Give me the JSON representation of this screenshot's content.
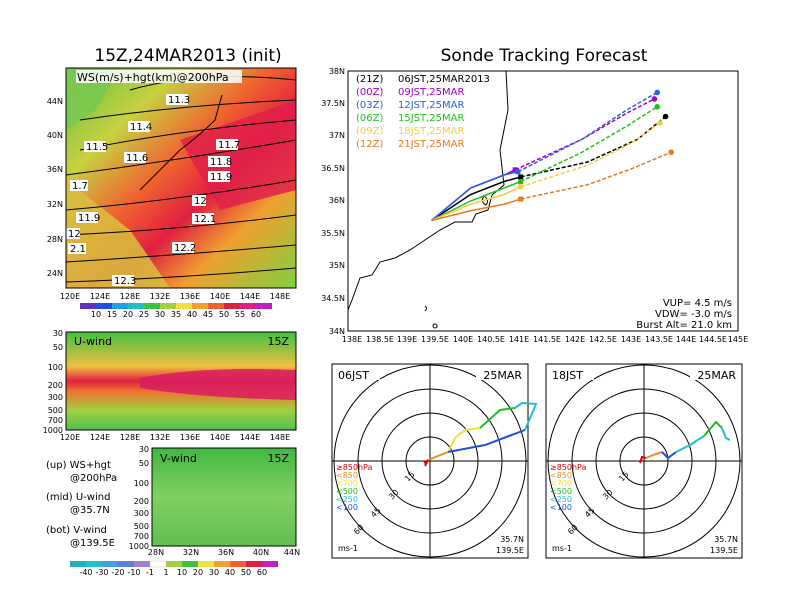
{
  "left_title": "15Z,24MAR2013 (init)",
  "right_title": "Sonde Tracking Forecast",
  "ws_panel": {
    "label": "WS(m/s)+hgt(km)@200hPa",
    "lat_ticks": [
      "44N",
      "40N",
      "36N",
      "32N",
      "28N",
      "24N"
    ],
    "lon_ticks": [
      "120E",
      "124E",
      "128E",
      "132E",
      "136E",
      "140E",
      "144E",
      "148E"
    ],
    "contour_labels": [
      "11.3",
      "11.4",
      "11.5",
      "11.6",
      "11.7",
      "11.8",
      "11.9",
      "1.7",
      "12",
      "12.1",
      "11.9",
      "12",
      "2.1",
      "12.2",
      "12.3"
    ],
    "colorbar": [
      "10",
      "15",
      "20",
      "25",
      "30",
      "35",
      "40",
      "45",
      "50",
      "55",
      "60"
    ]
  },
  "uwind_panel": {
    "label": "U-wind",
    "time": "15Z",
    "p_ticks": [
      "30",
      "50",
      "100",
      "200",
      "300",
      "500",
      "700",
      "1000"
    ],
    "lon_ticks": [
      "120E",
      "124E",
      "128E",
      "132E",
      "136E",
      "140E",
      "144E",
      "148E"
    ]
  },
  "vwind_panel": {
    "label": "V-wind",
    "time": "15Z",
    "p_ticks": [
      "30",
      "50",
      "100",
      "200",
      "300",
      "500",
      "700",
      "1000"
    ],
    "lat_ticks": [
      "28N",
      "32N",
      "36N",
      "40N",
      "44N"
    ],
    "colorbar": [
      "-40",
      "-30",
      "-20",
      "-10",
      "-1",
      "1",
      "10",
      "20",
      "30",
      "40",
      "50",
      "60"
    ]
  },
  "legend_notes": [
    {
      "a": "(up) WS+hgt",
      "b": "@200hPa"
    },
    {
      "a": "(mid) U-wind",
      "b": "@35.7N"
    },
    {
      "a": "(bot) V-wind",
      "b": "@139.5E"
    }
  ],
  "track_map": {
    "lat_ticks": [
      "38N",
      "37.5N",
      "37N",
      "36.5N",
      "36N",
      "35.5N",
      "35N",
      "34.5N",
      "34N"
    ],
    "lon_ticks": [
      "138E",
      "138.5E",
      "139E",
      "139.5E",
      "140E",
      "140.5E",
      "141E",
      "141.5E",
      "142E",
      "142.5E",
      "143E",
      "143.5E",
      "144E",
      "144.5E",
      "145E"
    ],
    "legend": [
      {
        "code": "(21Z)",
        "label": "06JST,25MAR2013",
        "color": "#000000"
      },
      {
        "code": "(00Z)",
        "label": "09JST,25MAR",
        "color": "#a000c8"
      },
      {
        "code": "(03Z)",
        "label": "12JST,25MAR",
        "color": "#2860e8"
      },
      {
        "code": "(06Z)",
        "label": "15JST,25MAR",
        "color": "#20c020"
      },
      {
        "code": "(09Z)",
        "label": "18JST,25MAR",
        "color": "#f0d040"
      },
      {
        "code": "(12Z)",
        "label": "21JST,25MAR",
        "color": "#e87820"
      }
    ],
    "params": {
      "vup": "VUP= 4.5 m/s",
      "vdw": "VDW= -3.0 m/s",
      "burst": "Burst Alt= 21.0 km"
    }
  },
  "hodo_left": {
    "time": "06JST",
    "date": "25MAR",
    "loc1": "35.7N",
    "loc2": "139.5E",
    "unit": "ms-1"
  },
  "hodo_right": {
    "time": "18JST",
    "date": "25MAR",
    "loc1": "35.7N",
    "loc2": "139.5E",
    "unit": "ms-1"
  },
  "hodo_legend": [
    {
      "label": "≥850hPa",
      "color": "#e00000"
    },
    {
      "label": "<850",
      "color": "#f09020"
    },
    {
      "label": "<700",
      "color": "#f0e040"
    },
    {
      "label": "<500",
      "color": "#20c020"
    },
    {
      "label": "<250",
      "color": "#20c0d0"
    },
    {
      "label": "<100",
      "color": "#2050e0"
    }
  ],
  "hodo_rings": [
    "15",
    "30",
    "45",
    "60"
  ],
  "chart_data": [
    {
      "type": "line",
      "title": "Sonde Tracking Forecast",
      "xlabel": "",
      "ylabel": "",
      "xlim": [
        138.0,
        145.0
      ],
      "ylim": [
        34.0,
        38.0
      ],
      "series": [
        {
          "name": "(21Z) 06JST,25MAR2013",
          "color": "#000000",
          "x": [
            139.5,
            140.2,
            140.8,
            141.1,
            142.3,
            143.2,
            143.7
          ],
          "y": [
            35.7,
            36.1,
            36.3,
            36.37,
            36.6,
            36.95,
            37.3
          ]
        },
        {
          "name": "(00Z) 09JST,25MAR",
          "color": "#a000c8",
          "x": [
            139.5,
            140.2,
            140.8,
            141.0,
            142.2,
            143.0,
            143.5
          ],
          "y": [
            35.7,
            36.2,
            36.4,
            36.48,
            36.95,
            37.35,
            37.57
          ]
        },
        {
          "name": "(03Z) 12JST,25MAR",
          "color": "#2860e8",
          "x": [
            139.5,
            140.2,
            140.8,
            141.05,
            142.2,
            143.0,
            143.55
          ],
          "y": [
            35.7,
            36.2,
            36.4,
            36.45,
            36.95,
            37.4,
            37.67
          ]
        },
        {
          "name": "(06Z) 15JST,25MAR",
          "color": "#20c020",
          "x": [
            139.5,
            140.2,
            140.8,
            141.1,
            142.2,
            143.0,
            143.55
          ],
          "y": [
            35.7,
            36.0,
            36.2,
            36.3,
            36.75,
            37.15,
            37.45
          ]
        },
        {
          "name": "(09Z) 18JST,25MAR",
          "color": "#f0d040",
          "x": [
            139.5,
            140.2,
            140.8,
            141.1,
            142.3,
            143.1,
            143.6
          ],
          "y": [
            35.7,
            35.95,
            36.1,
            36.22,
            36.55,
            36.9,
            37.2
          ]
        },
        {
          "name": "(12Z) 21JST,25MAR",
          "color": "#e87820",
          "x": [
            139.5,
            140.2,
            140.8,
            141.1,
            142.3,
            143.1,
            143.8
          ],
          "y": [
            35.7,
            35.85,
            35.95,
            36.03,
            36.25,
            36.5,
            36.75
          ]
        }
      ]
    }
  ]
}
